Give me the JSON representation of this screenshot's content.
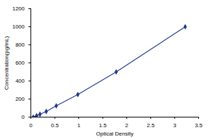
{
  "chart_data": {
    "type": "line",
    "x_label": "Optical Density",
    "y_label": "Concentration(pg/mL)",
    "x": [
      0.05,
      0.12,
      0.19,
      0.32,
      0.53,
      0.98,
      1.78,
      3.22
    ],
    "values": [
      0,
      16,
      31,
      62,
      125,
      250,
      500,
      1000
    ],
    "color": "#1f3a8a",
    "marker": "diamond",
    "xlim": [
      0,
      3.5
    ],
    "xticks": [
      0,
      0.5,
      1,
      1.5,
      2,
      2.5,
      3,
      3.5
    ],
    "ylim": [
      0,
      1200
    ],
    "yticks": [
      0,
      200,
      400,
      600,
      800,
      1000,
      1200
    ],
    "grid": false
  }
}
